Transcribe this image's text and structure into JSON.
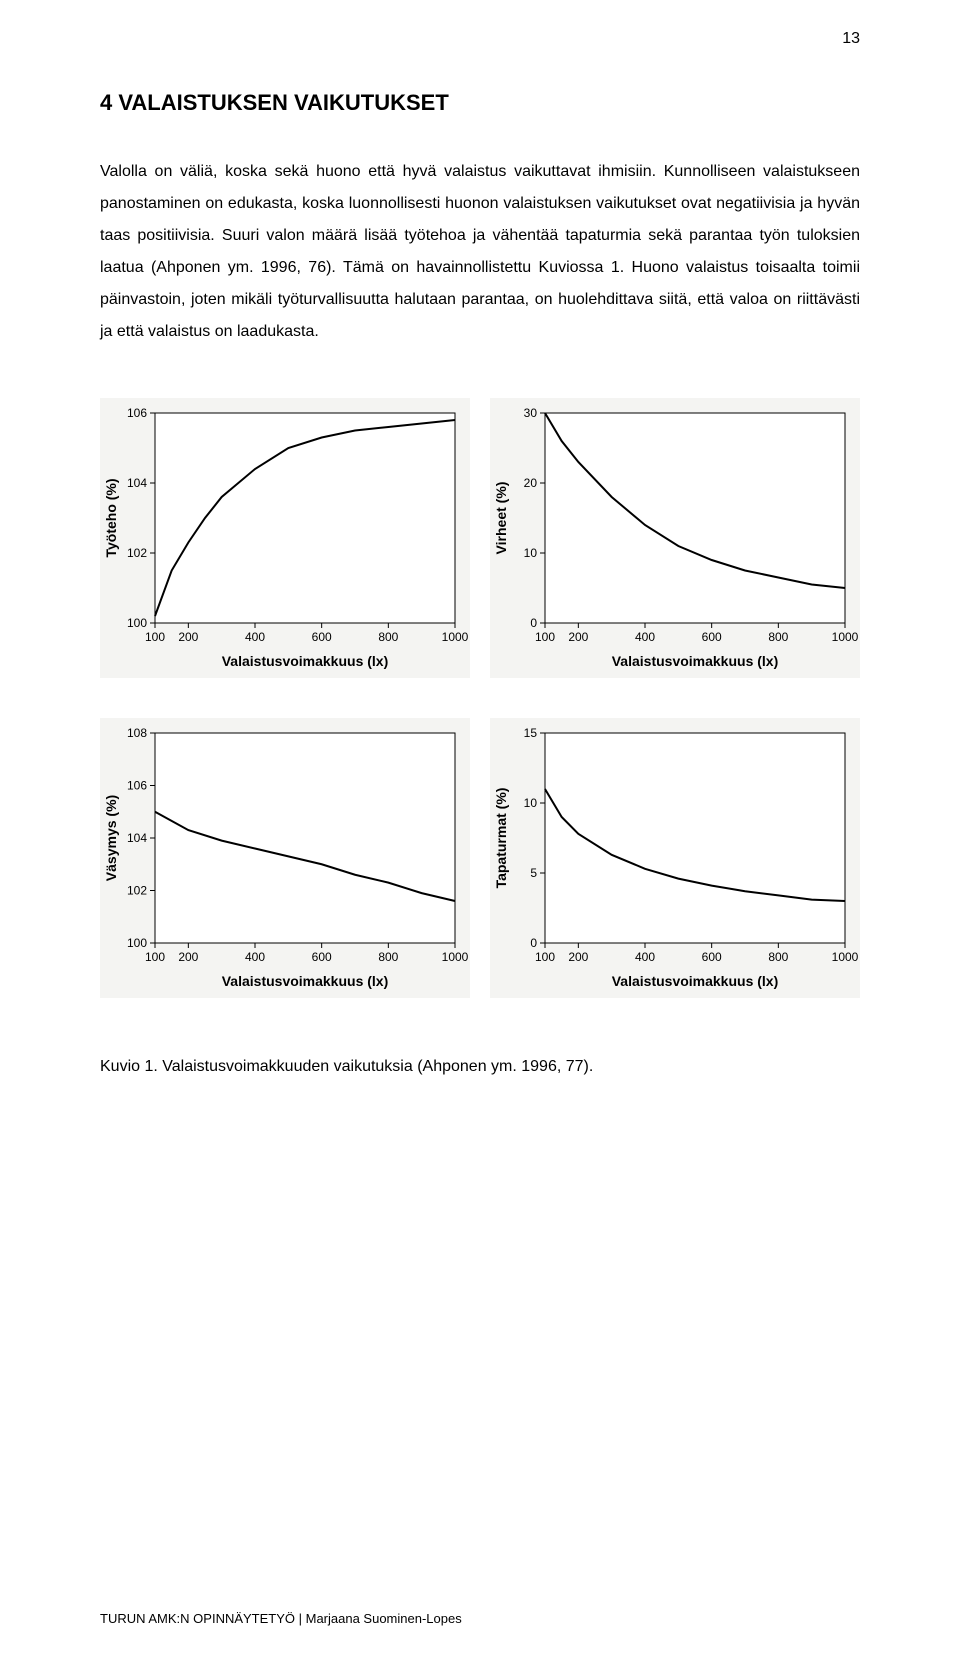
{
  "page_number": "13",
  "heading": "4 VALAISTUKSEN VAIKUTUKSET",
  "body_text": "Valolla on väliä, koska sekä huono että hyvä valaistus vaikuttavat ihmisiin. Kunnolliseen valaistukseen panostaminen on edukasta, koska luonnollisesti huonon valaistuksen vaikutukset ovat negatiivisia ja hyvän taas positiivisia. Suuri valon määrä lisää työtehoa ja vähentää tapaturmia sekä parantaa työn tuloksien laatua (Ahponen ym. 1996, 76). Tämä on havainnollistettu Kuviossa 1. Huono valaistus toisaalta toimii päinvastoin, joten mikäli työturvallisuutta halutaan parantaa, on huolehdittava siitä, että valoa on riittävästi ja että valaistus on laadukasta.",
  "caption": "Kuvio 1. Valaistusvoimakkuuden vaikutuksia (Ahponen ym. 1996, 77).",
  "footer": "TURUN AMK:N OPINNÄYTETYÖ | Marjaana Suominen-Lopes",
  "charts": {
    "tyoteho": {
      "type": "line",
      "ylabel": "Työteho (%)",
      "xlabel": "Valaistusvoimakkuus (lx)",
      "xlim": [
        100,
        1000
      ],
      "ylim": [
        100,
        106
      ],
      "xticks": [
        100,
        200,
        400,
        600,
        800,
        1000
      ],
      "yticks": [
        100,
        102,
        104,
        106
      ],
      "points": [
        [
          100,
          100.2
        ],
        [
          150,
          101.5
        ],
        [
          200,
          102.3
        ],
        [
          250,
          103.0
        ],
        [
          300,
          103.6
        ],
        [
          400,
          104.4
        ],
        [
          500,
          105.0
        ],
        [
          600,
          105.3
        ],
        [
          700,
          105.5
        ],
        [
          800,
          105.6
        ],
        [
          900,
          105.7
        ],
        [
          1000,
          105.8
        ]
      ],
      "line_color": "#000000",
      "line_width": 2,
      "background_color": "#f4f4f2",
      "plot_bg": "#ffffff",
      "label_fontsize": 12
    },
    "virheet": {
      "type": "line",
      "ylabel": "Virheet (%)",
      "xlabel": "Valaistusvoimakkuus (lx)",
      "xlim": [
        100,
        1000
      ],
      "ylim": [
        0,
        30
      ],
      "xticks": [
        100,
        200,
        400,
        600,
        800,
        1000
      ],
      "yticks": [
        0,
        10,
        20,
        30
      ],
      "points": [
        [
          100,
          30
        ],
        [
          150,
          26
        ],
        [
          200,
          23
        ],
        [
          300,
          18
        ],
        [
          400,
          14
        ],
        [
          500,
          11
        ],
        [
          600,
          9
        ],
        [
          700,
          7.5
        ],
        [
          800,
          6.5
        ],
        [
          900,
          5.5
        ],
        [
          1000,
          5
        ]
      ],
      "line_color": "#000000",
      "line_width": 2,
      "background_color": "#f4f4f2",
      "plot_bg": "#ffffff",
      "label_fontsize": 12
    },
    "vasymys": {
      "type": "line",
      "ylabel": "Väsymys (%)",
      "xlabel": "Valaistusvoimakkuus (lx)",
      "xlim": [
        100,
        1000
      ],
      "ylim": [
        100,
        108
      ],
      "xticks": [
        100,
        200,
        400,
        600,
        800,
        1000
      ],
      "yticks": [
        100,
        102,
        104,
        106,
        108
      ],
      "points": [
        [
          100,
          105
        ],
        [
          200,
          104.3
        ],
        [
          300,
          103.9
        ],
        [
          400,
          103.6
        ],
        [
          500,
          103.3
        ],
        [
          600,
          103.0
        ],
        [
          700,
          102.6
        ],
        [
          800,
          102.3
        ],
        [
          900,
          101.9
        ],
        [
          1000,
          101.6
        ]
      ],
      "line_color": "#000000",
      "line_width": 2,
      "background_color": "#f4f4f2",
      "plot_bg": "#ffffff",
      "label_fontsize": 12
    },
    "tapaturmat": {
      "type": "line",
      "ylabel": "Tapaturmat (%)",
      "xlabel": "Valaistusvoimakkuus (lx)",
      "xlim": [
        100,
        1000
      ],
      "ylim": [
        0,
        15
      ],
      "xticks": [
        100,
        200,
        400,
        600,
        800,
        1000
      ],
      "yticks": [
        0,
        5,
        10,
        15
      ],
      "points": [
        [
          100,
          11
        ],
        [
          150,
          9
        ],
        [
          200,
          7.8
        ],
        [
          300,
          6.3
        ],
        [
          400,
          5.3
        ],
        [
          500,
          4.6
        ],
        [
          600,
          4.1
        ],
        [
          700,
          3.7
        ],
        [
          800,
          3.4
        ],
        [
          900,
          3.1
        ],
        [
          1000,
          3
        ]
      ],
      "line_color": "#000000",
      "line_width": 2,
      "background_color": "#f4f4f2",
      "plot_bg": "#ffffff",
      "label_fontsize": 12
    }
  }
}
